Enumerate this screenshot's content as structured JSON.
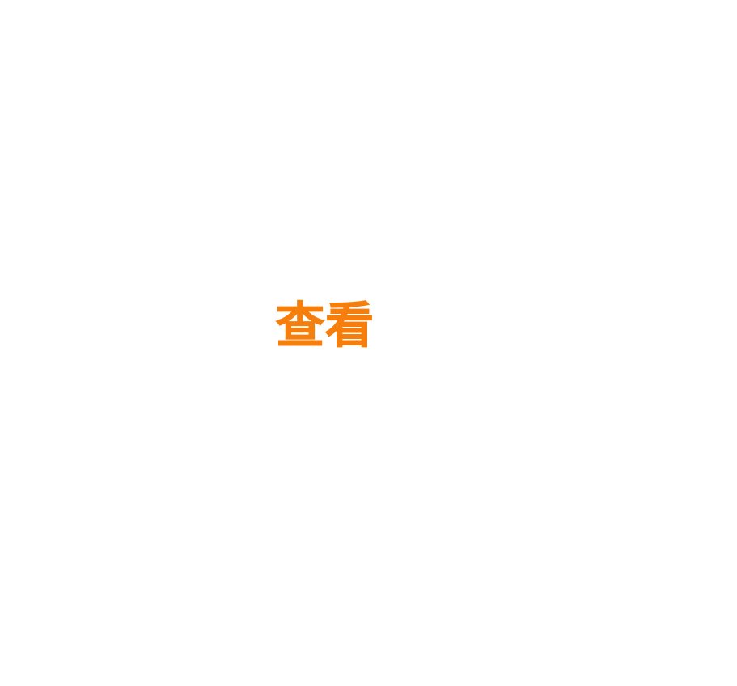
{
  "view_label": {
    "text": "查看",
    "color": "#f57e0c"
  },
  "background_color": "#ffffff"
}
